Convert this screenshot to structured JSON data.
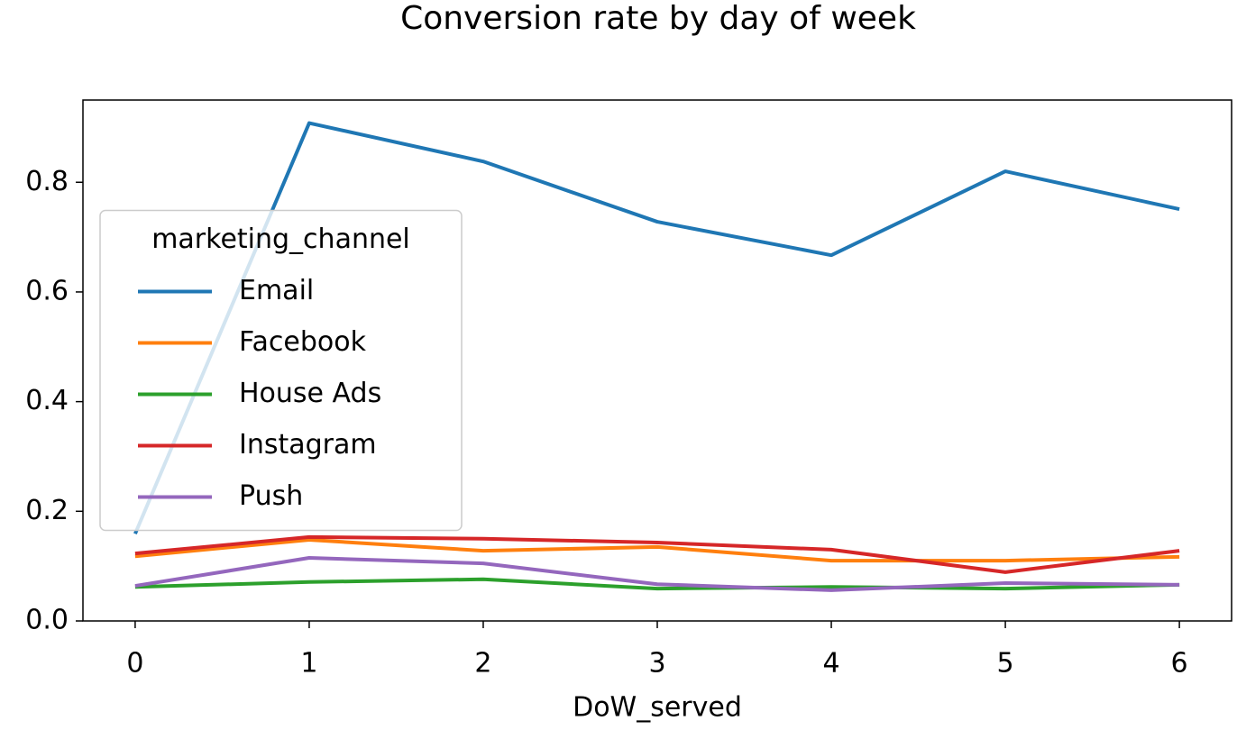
{
  "chart_data": {
    "type": "line",
    "title": "Conversion rate by day of week",
    "xlabel": "DoW_served",
    "x": [
      0,
      1,
      2,
      3,
      4,
      5,
      6
    ],
    "series": [
      {
        "name": "Email",
        "color": "#1f77b4",
        "values": [
          0.159,
          0.908,
          0.838,
          0.728,
          0.667,
          0.82,
          0.751
        ]
      },
      {
        "name": "Facebook",
        "color": "#ff7f0e",
        "values": [
          0.118,
          0.148,
          0.128,
          0.135,
          0.11,
          0.11,
          0.117
        ]
      },
      {
        "name": "House Ads",
        "color": "#2ca02c",
        "values": [
          0.062,
          0.071,
          0.076,
          0.059,
          0.062,
          0.059,
          0.066
        ]
      },
      {
        "name": "Instagram",
        "color": "#d62728",
        "values": [
          0.123,
          0.153,
          0.15,
          0.143,
          0.13,
          0.089,
          0.128
        ]
      },
      {
        "name": "Push",
        "color": "#9467bd",
        "values": [
          0.064,
          0.115,
          0.105,
          0.067,
          0.056,
          0.069,
          0.066
        ]
      }
    ],
    "legend_title": "marketing_channel",
    "legend": "center left",
    "xlim": [
      -0.3,
      6.3
    ],
    "xticks": [
      0,
      1,
      2,
      3,
      4,
      5,
      6
    ],
    "ylim": [
      0,
      0.95
    ],
    "yticks": [
      {
        "value": 0,
        "label": "0.0"
      },
      0.2,
      0.4,
      0.6,
      0.8
    ],
    "grid": false
  }
}
